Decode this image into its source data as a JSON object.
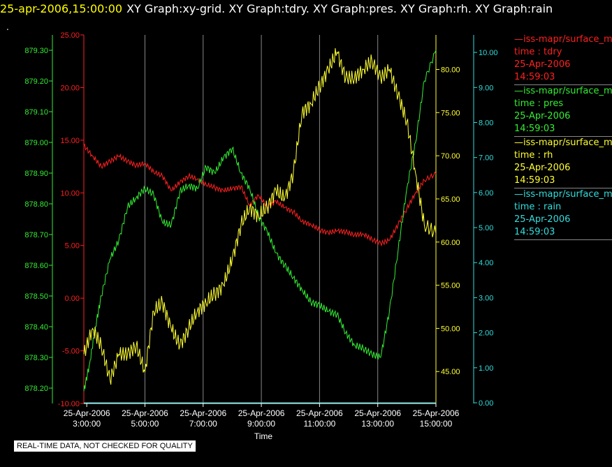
{
  "header": {
    "timestamp": "25-apr-2006,15:00:00",
    "graphs": "XY Graph:xy-grid.  XY Graph:tdry.  XY Graph:pres.  XY Graph:rh.  XY Graph:rain"
  },
  "dot": ".",
  "disclaimer": "REAL-TIME DATA, NOT CHECKED FOR QUALITY",
  "legend": [
    {
      "title": "—iss-mapr/surface_m",
      "var": "time : tdry",
      "date": "25-Apr-2006",
      "time": "14:59:03",
      "color": "#ff2020"
    },
    {
      "title": "—iss-mapr/surface_m",
      "var": "time : pres",
      "date": "25-Apr-2006",
      "time": "14:59:03",
      "color": "#33ee33"
    },
    {
      "title": "—iss-mapr/surface_m",
      "var": "time : rh",
      "date": "25-Apr-2006",
      "time": "14:59:03",
      "color": "#ffff33"
    },
    {
      "title": "—iss-mapr/surface_m",
      "var": "time : rain",
      "date": "25-Apr-2006",
      "time": "14:59:03",
      "color": "#33dddd"
    }
  ],
  "chart_data": {
    "type": "line",
    "xlabel": "Time",
    "x_ticks": [
      {
        "h": 3,
        "date": "25-Apr-2006",
        "time": "3:00:00"
      },
      {
        "h": 5,
        "date": "25-Apr-2006",
        "time": "5:00:00"
      },
      {
        "h": 7,
        "date": "25-Apr-2006",
        "time": "7:00:00"
      },
      {
        "h": 9,
        "date": "25-Apr-2006",
        "time": "9:00:00"
      },
      {
        "h": 11,
        "date": "25-Apr-2006",
        "time": "11:00:00"
      },
      {
        "h": 13,
        "date": "25-Apr-2006",
        "time": "13:00:00"
      },
      {
        "h": 15,
        "date": "25-Apr-2006",
        "time": "15:00:00"
      }
    ],
    "xlim": [
      2.9,
      15.0
    ],
    "grid": "vertical",
    "axes": [
      {
        "name": "pres",
        "side": "left-outer",
        "color": "#33ee33",
        "range": [
          878.15,
          879.35
        ],
        "ticks": [
          "878.20",
          "878.30",
          "878.40",
          "878.50",
          "878.60",
          "878.70",
          "878.80",
          "878.90",
          "879.00",
          "879.10",
          "879.20",
          "879.30"
        ]
      },
      {
        "name": "tdry",
        "side": "left-inner",
        "color": "#ff2020",
        "range": [
          -10,
          25
        ],
        "ticks": [
          "-10.00",
          "-5.00",
          "0.00",
          "5.00",
          "10.00",
          "15.00",
          "20.00",
          "25.00"
        ]
      },
      {
        "name": "rh",
        "side": "right-inner",
        "color": "#ffff33",
        "range": [
          41.3,
          84.0
        ],
        "ticks": [
          "45.00",
          "50.00",
          "55.00",
          "60.00",
          "65.00",
          "70.00",
          "75.00",
          "80.00"
        ]
      },
      {
        "name": "rain",
        "side": "right-outer",
        "color": "#33dddd",
        "range": [
          -0.02,
          10.5
        ],
        "ticks": [
          "0.00",
          "1.00",
          "2.00",
          "3.00",
          "4.00",
          "5.00",
          "6.00",
          "7.00",
          "8.00",
          "9.00",
          "10.00"
        ]
      }
    ],
    "series": [
      {
        "name": "tdry",
        "axis": "tdry",
        "color": "#ff2020",
        "x": [
          2.9,
          3.2,
          3.5,
          3.8,
          4.1,
          4.4,
          4.7,
          5.0,
          5.3,
          5.6,
          5.9,
          6.2,
          6.5,
          6.8,
          7.1,
          7.4,
          7.7,
          8.0,
          8.3,
          8.6,
          8.9,
          9.2,
          9.5,
          9.8,
          10.1,
          10.4,
          10.7,
          11.0,
          11.3,
          11.6,
          11.9,
          12.2,
          12.5,
          12.8,
          13.1,
          13.4,
          13.7,
          14.0,
          14.3,
          14.6,
          15.0
        ],
        "values": [
          14.5,
          13.5,
          12.5,
          13,
          13.5,
          13,
          12.6,
          12.8,
          12,
          11.6,
          10.2,
          11,
          11.6,
          11.3,
          10.8,
          10.5,
          10.2,
          10.4,
          10.6,
          8.8,
          9.8,
          8.7,
          9.2,
          8.6,
          8.2,
          7.3,
          7.0,
          6.5,
          6.2,
          6.4,
          6.3,
          6.0,
          6.1,
          5.6,
          5.2,
          5.5,
          7.0,
          8.5,
          10.0,
          11.2,
          11.8
        ]
      },
      {
        "name": "pres",
        "axis": "pres",
        "color": "#33ee33",
        "x": [
          2.9,
          3.1,
          3.3,
          3.5,
          3.8,
          4.1,
          4.4,
          4.7,
          5.0,
          5.3,
          5.6,
          5.9,
          6.2,
          6.5,
          6.8,
          7.1,
          7.4,
          7.7,
          8.0,
          8.3,
          8.6,
          8.9,
          9.2,
          9.5,
          9.8,
          10.1,
          10.4,
          10.7,
          11.0,
          11.3,
          11.6,
          11.9,
          12.2,
          12.5,
          12.8,
          13.1,
          13.4,
          13.7,
          14.0,
          14.3,
          14.6,
          15.0
        ],
        "values": [
          878.19,
          878.28,
          878.4,
          878.5,
          878.62,
          878.68,
          878.79,
          878.82,
          878.85,
          878.83,
          878.74,
          878.73,
          878.84,
          878.86,
          878.85,
          878.92,
          878.9,
          878.95,
          878.98,
          878.9,
          878.85,
          878.76,
          878.71,
          878.64,
          878.6,
          878.56,
          878.52,
          878.48,
          878.47,
          878.45,
          878.44,
          878.38,
          878.34,
          878.33,
          878.31,
          878.3,
          878.45,
          878.65,
          878.85,
          879.0,
          879.2,
          879.3
        ]
      },
      {
        "name": "rh",
        "axis": "rh",
        "color": "#ffff33",
        "x": [
          2.9,
          3.2,
          3.5,
          3.8,
          4.1,
          4.4,
          4.7,
          5.0,
          5.3,
          5.6,
          5.9,
          6.2,
          6.5,
          6.8,
          7.1,
          7.4,
          7.7,
          8.0,
          8.3,
          8.6,
          8.9,
          9.2,
          9.5,
          9.8,
          10.1,
          10.4,
          10.7,
          11.0,
          11.3,
          11.6,
          11.9,
          12.2,
          12.5,
          12.8,
          13.1,
          13.4,
          13.7,
          14.0,
          14.3,
          14.6,
          15.0
        ],
        "values": [
          47,
          50,
          48,
          44,
          47,
          47,
          48,
          45,
          52,
          53,
          50,
          48,
          50,
          52,
          53,
          54,
          55,
          58,
          62,
          64,
          63,
          64,
          66,
          65,
          68,
          75,
          76,
          78,
          80,
          82,
          79,
          79,
          80,
          81,
          79,
          80,
          77,
          74,
          68,
          62,
          61
        ]
      },
      {
        "name": "rain",
        "axis": "rain",
        "color": "#33dddd",
        "x": [
          2.9,
          15.0
        ],
        "values": [
          0,
          0
        ]
      }
    ]
  }
}
